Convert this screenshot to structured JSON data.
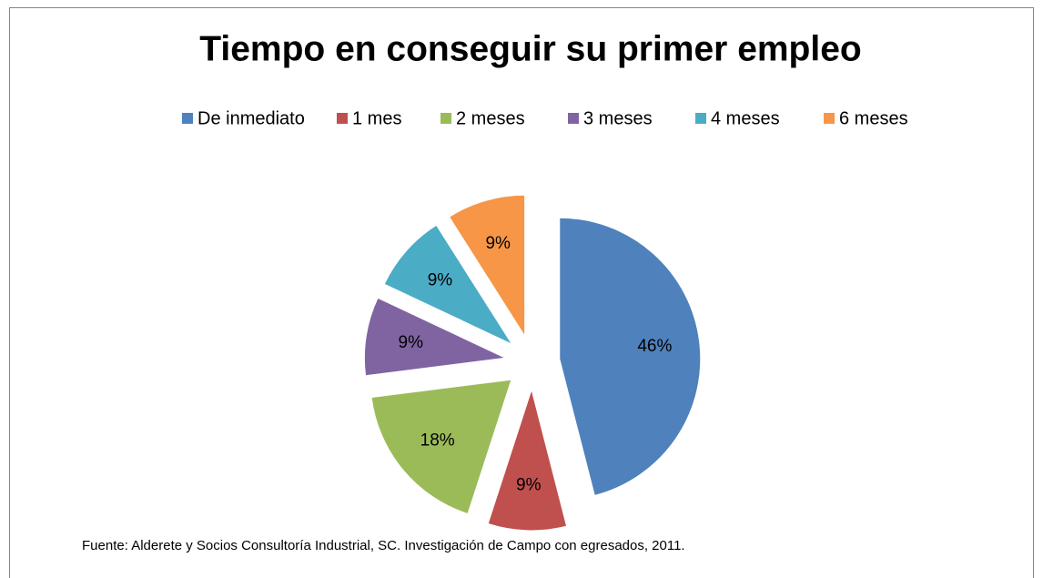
{
  "chart_data": {
    "type": "pie",
    "title": "Tiempo en conseguir su primer empleo",
    "categories": [
      "De inmediato",
      "1 mes",
      "2 meses",
      "3 meses",
      "4 meses",
      "6 meses"
    ],
    "values": [
      46,
      9,
      18,
      9,
      9,
      9
    ],
    "value_labels": [
      "46%",
      "9%",
      "18%",
      "9%",
      "9%",
      "9%"
    ],
    "colors": [
      "#4f81bd",
      "#c0504d",
      "#9bbb59",
      "#8064a2",
      "#4bacc6",
      "#f79646"
    ],
    "legend": "top",
    "exploded": true,
    "source": "Fuente: Alderete y Socios Consultoría Industrial, SC. Investigación de Campo con egresados, 2011."
  }
}
